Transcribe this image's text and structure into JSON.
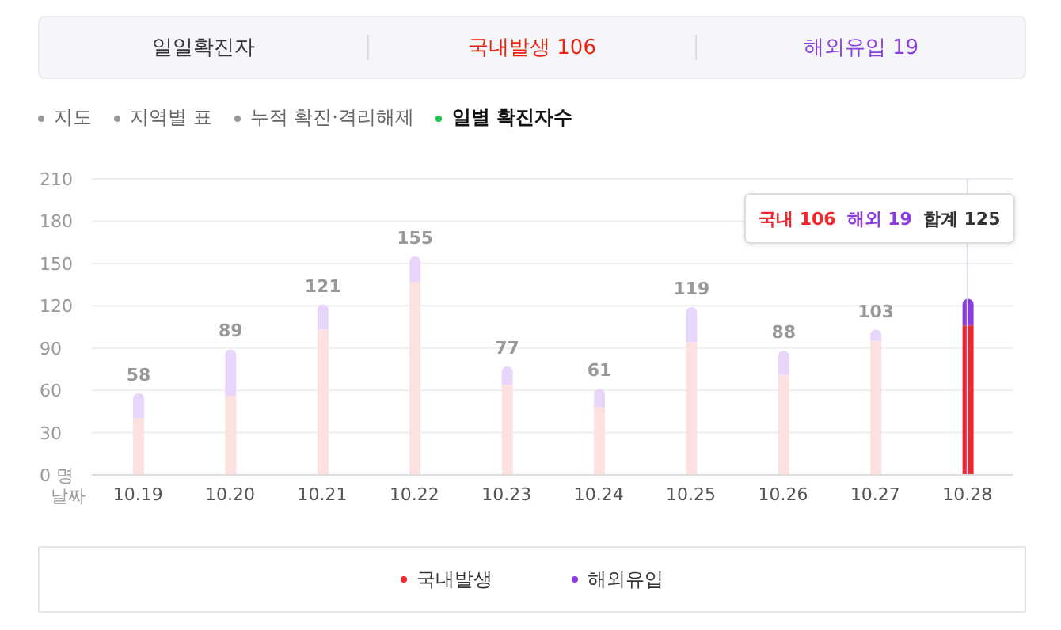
{
  "chart_data": {
    "type": "bar",
    "stacked": true,
    "title": "일일확진자",
    "xlabel": "날짜",
    "categories": [
      "10.19",
      "10.20",
      "10.21",
      "10.22",
      "10.23",
      "10.24",
      "10.25",
      "10.26",
      "10.27",
      "10.28"
    ],
    "series": [
      {
        "name": "국내발생",
        "color": "#f2272b",
        "colors": [
          "#fde1e1",
          "#fde1e1",
          "#fde1e1",
          "#fde1e1",
          "#fde1e1",
          "#fde1e1",
          "#fde1e1",
          "#fde1e1",
          "#fde1e1",
          "#f2272b"
        ],
        "values": [
          40,
          56,
          103,
          137,
          64,
          48,
          94,
          71,
          95,
          106
        ]
      },
      {
        "name": "해외유입",
        "color": "#8d3ce0",
        "colors": [
          "#e8d6fa",
          "#e8d6fa",
          "#e8d6fa",
          "#e8d6fa",
          "#e8d6fa",
          "#e8d6fa",
          "#e8d6fa",
          "#e8d6fa",
          "#e8d6fa",
          "#8d3ce0"
        ],
        "values": [
          18,
          33,
          18,
          18,
          13,
          13,
          25,
          17,
          8,
          19
        ]
      }
    ],
    "totals": [
      "58",
      "89",
      "121",
      "155",
      "77",
      "61",
      "119",
      "88",
      "103",
      null
    ],
    "ylim": [
      0,
      210
    ],
    "yticks": [
      {
        "value": 0,
        "label": "0 명"
      },
      30,
      60,
      90,
      120,
      150,
      180,
      210
    ],
    "grid": "y",
    "legend": "bottom",
    "ref_lines": [
      {
        "axis": "x",
        "value": "10.28",
        "color": "#dcdcf5"
      }
    ],
    "annotations": [
      "국내발생 106",
      "해외유입 19",
      "지도",
      "지역별 표",
      "누적 확진·격리해제",
      "일별 확진자수",
      "국내 106",
      "해외 19",
      "합계 125"
    ]
  }
}
